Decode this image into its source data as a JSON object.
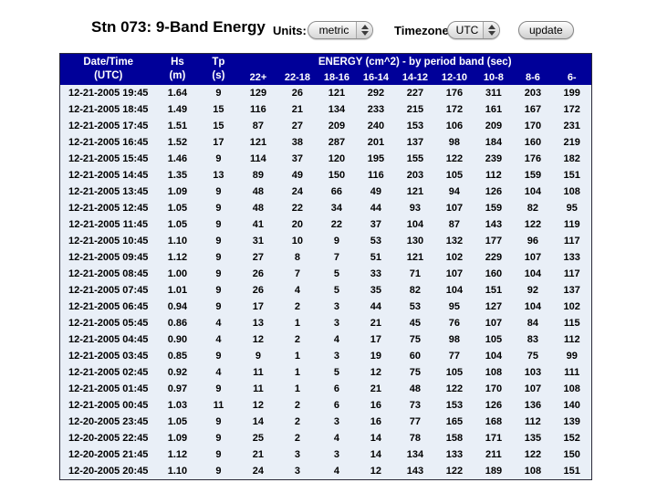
{
  "title": "Stn 073: 9-Band Energy",
  "controls": {
    "units_label": "Units:",
    "units_value": "metric",
    "timezone_label": "Timezone:",
    "timezone_value": "UTC",
    "update_label": "update"
  },
  "colors": {
    "header_bg": "#000099",
    "row_bg": "#e9eff7",
    "header_text": "#ffffff"
  },
  "table": {
    "header": {
      "datetime_line1": "Date/Time",
      "datetime_line2": "(UTC)",
      "hs_line1": "Hs",
      "hs_line2": "(m)",
      "tp_line1": "Tp",
      "tp_line2": "(s)",
      "energy_banner": "ENERGY (cm^2) - by period band (sec)",
      "bands": [
        "22+",
        "22-18",
        "18-16",
        "16-14",
        "14-12",
        "12-10",
        "10-8",
        "8-6",
        "6-"
      ]
    },
    "rows": [
      [
        "12-21-2005 19:45",
        "1.64",
        "9",
        "129",
        "26",
        "121",
        "292",
        "227",
        "176",
        "311",
        "203",
        "199"
      ],
      [
        "12-21-2005 18:45",
        "1.49",
        "15",
        "116",
        "21",
        "134",
        "233",
        "215",
        "172",
        "161",
        "167",
        "172"
      ],
      [
        "12-21-2005 17:45",
        "1.51",
        "15",
        "87",
        "27",
        "209",
        "240",
        "153",
        "106",
        "209",
        "170",
        "231"
      ],
      [
        "12-21-2005 16:45",
        "1.52",
        "17",
        "121",
        "38",
        "287",
        "201",
        "137",
        "98",
        "184",
        "160",
        "219"
      ],
      [
        "12-21-2005 15:45",
        "1.46",
        "9",
        "114",
        "37",
        "120",
        "195",
        "155",
        "122",
        "239",
        "176",
        "182"
      ],
      [
        "12-21-2005 14:45",
        "1.35",
        "13",
        "89",
        "49",
        "150",
        "116",
        "203",
        "105",
        "112",
        "159",
        "151"
      ],
      [
        "12-21-2005 13:45",
        "1.09",
        "9",
        "48",
        "24",
        "66",
        "49",
        "121",
        "94",
        "126",
        "104",
        "108"
      ],
      [
        "12-21-2005 12:45",
        "1.05",
        "9",
        "48",
        "22",
        "34",
        "44",
        "93",
        "107",
        "159",
        "82",
        "95"
      ],
      [
        "12-21-2005 11:45",
        "1.05",
        "9",
        "41",
        "20",
        "22",
        "37",
        "104",
        "87",
        "143",
        "122",
        "119"
      ],
      [
        "12-21-2005 10:45",
        "1.10",
        "9",
        "31",
        "10",
        "9",
        "53",
        "130",
        "132",
        "177",
        "96",
        "117"
      ],
      [
        "12-21-2005 09:45",
        "1.12",
        "9",
        "27",
        "8",
        "7",
        "51",
        "121",
        "102",
        "229",
        "107",
        "133"
      ],
      [
        "12-21-2005 08:45",
        "1.00",
        "9",
        "26",
        "7",
        "5",
        "33",
        "71",
        "107",
        "160",
        "104",
        "117"
      ],
      [
        "12-21-2005 07:45",
        "1.01",
        "9",
        "26",
        "4",
        "5",
        "35",
        "82",
        "104",
        "151",
        "92",
        "137"
      ],
      [
        "12-21-2005 06:45",
        "0.94",
        "9",
        "17",
        "2",
        "3",
        "44",
        "53",
        "95",
        "127",
        "104",
        "102"
      ],
      [
        "12-21-2005 05:45",
        "0.86",
        "4",
        "13",
        "1",
        "3",
        "21",
        "45",
        "76",
        "107",
        "84",
        "115"
      ],
      [
        "12-21-2005 04:45",
        "0.90",
        "4",
        "12",
        "2",
        "4",
        "17",
        "75",
        "98",
        "105",
        "83",
        "112"
      ],
      [
        "12-21-2005 03:45",
        "0.85",
        "9",
        "9",
        "1",
        "3",
        "19",
        "60",
        "77",
        "104",
        "75",
        "99"
      ],
      [
        "12-21-2005 02:45",
        "0.92",
        "4",
        "11",
        "1",
        "5",
        "12",
        "75",
        "105",
        "108",
        "103",
        "111"
      ],
      [
        "12-21-2005 01:45",
        "0.97",
        "9",
        "11",
        "1",
        "6",
        "21",
        "48",
        "122",
        "170",
        "107",
        "108"
      ],
      [
        "12-21-2005 00:45",
        "1.03",
        "11",
        "12",
        "2",
        "6",
        "16",
        "73",
        "153",
        "126",
        "136",
        "140"
      ],
      [
        "12-20-2005 23:45",
        "1.05",
        "9",
        "14",
        "2",
        "3",
        "16",
        "77",
        "165",
        "168",
        "112",
        "139"
      ],
      [
        "12-20-2005 22:45",
        "1.09",
        "9",
        "25",
        "2",
        "4",
        "14",
        "78",
        "158",
        "171",
        "135",
        "152"
      ],
      [
        "12-20-2005 21:45",
        "1.12",
        "9",
        "21",
        "3",
        "3",
        "14",
        "134",
        "133",
        "211",
        "122",
        "150"
      ],
      [
        "12-20-2005 20:45",
        "1.10",
        "9",
        "24",
        "3",
        "4",
        "12",
        "143",
        "122",
        "189",
        "108",
        "151"
      ]
    ]
  }
}
